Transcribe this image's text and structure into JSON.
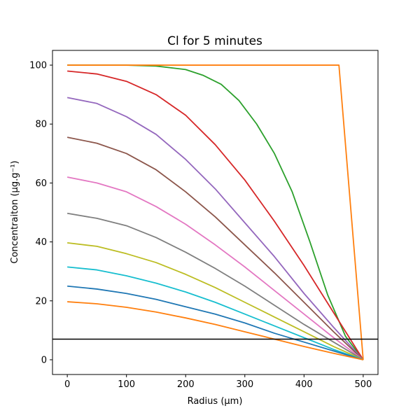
{
  "chart_data": {
    "type": "line",
    "title": "Cl for 5 minutes",
    "xlabel": "Radius (μm)",
    "ylabel": "Concentraiton (μg.g⁻¹)",
    "xlim": [
      -25,
      525
    ],
    "ylim": [
      -5,
      105
    ],
    "xticks": [
      0,
      100,
      200,
      300,
      400,
      500
    ],
    "yticks": [
      0,
      20,
      40,
      60,
      80,
      100
    ],
    "grid": false,
    "hline": {
      "y": 7,
      "color": "#000000"
    },
    "series": [
      {
        "color": "#2ca02c",
        "points": [
          [
            0,
            100
          ],
          [
            100,
            100
          ],
          [
            150,
            99.7
          ],
          [
            200,
            98.5
          ],
          [
            230,
            96.5
          ],
          [
            260,
            93.5
          ],
          [
            290,
            88
          ],
          [
            320,
            80
          ],
          [
            350,
            70
          ],
          [
            380,
            57
          ],
          [
            410,
            40
          ],
          [
            440,
            22
          ],
          [
            470,
            8
          ],
          [
            500,
            0
          ]
        ]
      },
      {
        "color": "#d62728",
        "points": [
          [
            0,
            98
          ],
          [
            50,
            97
          ],
          [
            100,
            94.5
          ],
          [
            150,
            90
          ],
          [
            200,
            83
          ],
          [
            250,
            73
          ],
          [
            300,
            61
          ],
          [
            350,
            47
          ],
          [
            400,
            32
          ],
          [
            450,
            16
          ],
          [
            500,
            0
          ]
        ]
      },
      {
        "color": "#9467bd",
        "points": [
          [
            0,
            89
          ],
          [
            50,
            87
          ],
          [
            100,
            82.5
          ],
          [
            150,
            76.5
          ],
          [
            200,
            68
          ],
          [
            250,
            58
          ],
          [
            300,
            46.5
          ],
          [
            350,
            35
          ],
          [
            400,
            22.5
          ],
          [
            450,
            11
          ],
          [
            500,
            0
          ]
        ]
      },
      {
        "color": "#8c564b",
        "points": [
          [
            0,
            75.5
          ],
          [
            50,
            73.5
          ],
          [
            100,
            70
          ],
          [
            150,
            64.5
          ],
          [
            200,
            57
          ],
          [
            250,
            48.5
          ],
          [
            300,
            39
          ],
          [
            350,
            29.5
          ],
          [
            400,
            19.5
          ],
          [
            450,
            9.5
          ],
          [
            500,
            0
          ]
        ]
      },
      {
        "color": "#e377c2",
        "points": [
          [
            0,
            62
          ],
          [
            50,
            60
          ],
          [
            100,
            57
          ],
          [
            150,
            52
          ],
          [
            200,
            46
          ],
          [
            250,
            39
          ],
          [
            300,
            31.5
          ],
          [
            350,
            23.5
          ],
          [
            400,
            15.5
          ],
          [
            450,
            7.5
          ],
          [
            500,
            0
          ]
        ]
      },
      {
        "color": "#7f7f7f",
        "points": [
          [
            0,
            49.7
          ],
          [
            50,
            48
          ],
          [
            100,
            45.5
          ],
          [
            150,
            41.5
          ],
          [
            200,
            36.5
          ],
          [
            250,
            31
          ],
          [
            300,
            25
          ],
          [
            350,
            18.5
          ],
          [
            400,
            12
          ],
          [
            450,
            6
          ],
          [
            500,
            0
          ]
        ]
      },
      {
        "color": "#bcbd22",
        "points": [
          [
            0,
            39.7
          ],
          [
            50,
            38.5
          ],
          [
            100,
            36
          ],
          [
            150,
            33
          ],
          [
            200,
            29
          ],
          [
            250,
            24.5
          ],
          [
            300,
            19.5
          ],
          [
            350,
            14.5
          ],
          [
            400,
            9.5
          ],
          [
            450,
            4.5
          ],
          [
            500,
            0
          ]
        ]
      },
      {
        "color": "#17becf",
        "points": [
          [
            0,
            31.5
          ],
          [
            50,
            30.5
          ],
          [
            100,
            28.5
          ],
          [
            150,
            26
          ],
          [
            200,
            23
          ],
          [
            250,
            19.5
          ],
          [
            300,
            15.5
          ],
          [
            350,
            11.5
          ],
          [
            400,
            7.5
          ],
          [
            450,
            3.5
          ],
          [
            500,
            0
          ]
        ]
      },
      {
        "color": "#1f77b4",
        "points": [
          [
            0,
            25
          ],
          [
            50,
            24
          ],
          [
            100,
            22.5
          ],
          [
            150,
            20.5
          ],
          [
            200,
            18
          ],
          [
            250,
            15.5
          ],
          [
            300,
            12.5
          ],
          [
            350,
            9
          ],
          [
            400,
            6
          ],
          [
            450,
            3
          ],
          [
            500,
            0
          ]
        ]
      },
      {
        "color": "#ff7f0e",
        "points": [
          [
            0,
            19.7
          ],
          [
            50,
            19
          ],
          [
            100,
            17.8
          ],
          [
            150,
            16.2
          ],
          [
            200,
            14.2
          ],
          [
            250,
            12
          ],
          [
            300,
            9.5
          ],
          [
            350,
            7
          ],
          [
            400,
            4.5
          ],
          [
            450,
            2.2
          ],
          [
            500,
            0
          ]
        ]
      },
      {
        "color": "#ff7f0e",
        "points": [
          [
            0,
            100
          ],
          [
            459,
            100
          ],
          [
            500,
            0
          ]
        ]
      }
    ]
  }
}
